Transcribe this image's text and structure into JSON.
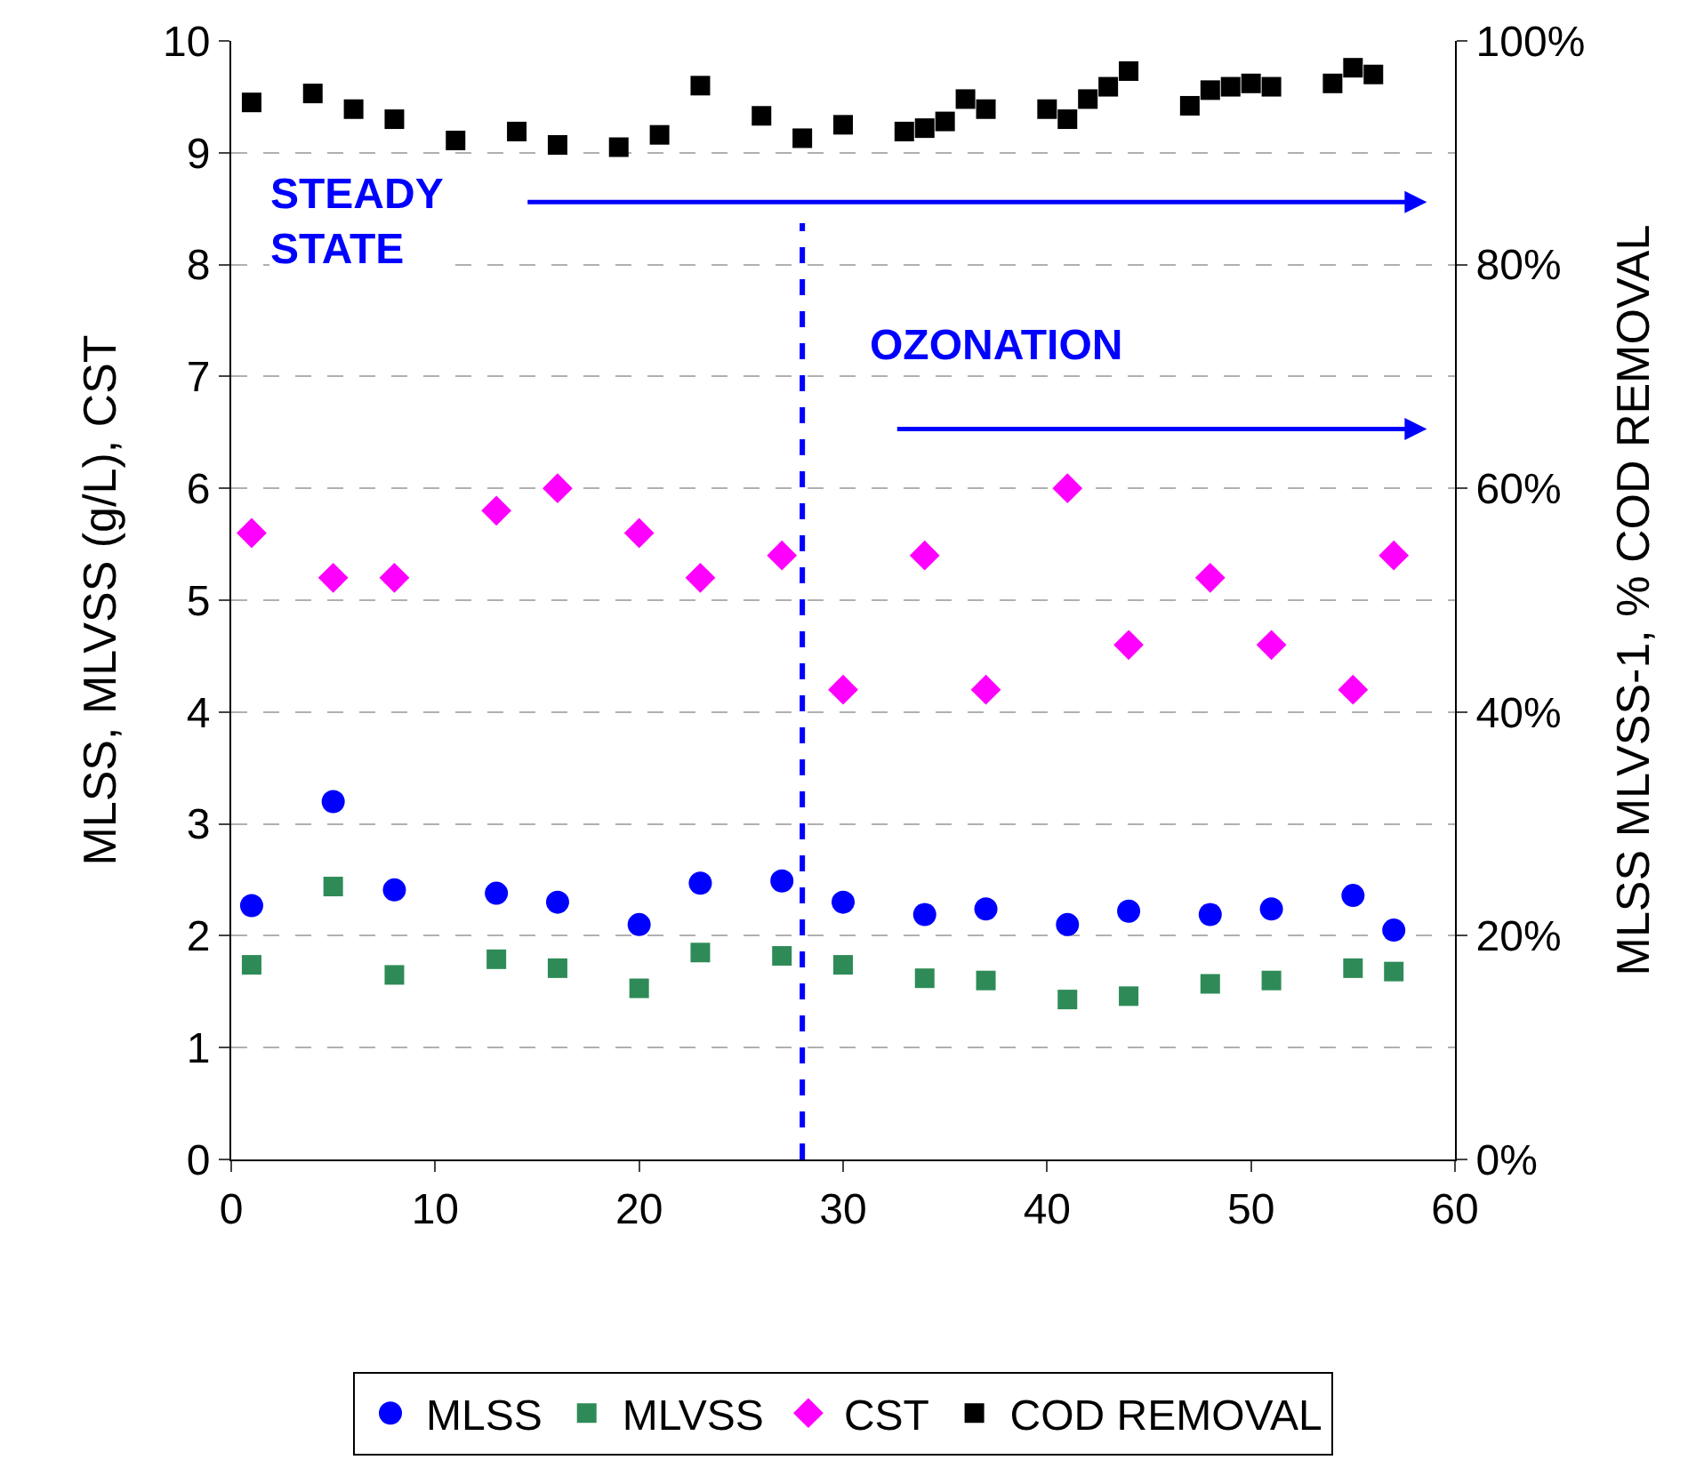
{
  "chart_data": {
    "type": "scatter",
    "xlabel": null,
    "ylabel": "MLSS, MLVSS (g/L), CST",
    "y2label": "MLSS MLVSS-1, % COD REMOVAL",
    "xlim": [
      0,
      60
    ],
    "xticks": [
      0,
      10,
      20,
      30,
      40,
      50,
      60
    ],
    "ylim": [
      0,
      10
    ],
    "yticks": [
      0,
      1,
      2,
      3,
      4,
      5,
      6,
      7,
      8,
      9,
      10
    ],
    "y2lim": [
      0,
      100
    ],
    "y2ticks": [
      {
        "value": 0,
        "label": "0%"
      },
      {
        "value": 20,
        "label": "20%"
      },
      {
        "value": 40,
        "label": "40%"
      },
      {
        "value": 60,
        "label": "60%"
      },
      {
        "value": 80,
        "label": "80%"
      },
      {
        "value": 100,
        "label": "100%"
      }
    ],
    "grid": "y",
    "legend": "bottom",
    "series": [
      {
        "name": "MLSS",
        "color": "#0000ff",
        "marker": "circle",
        "x": [
          1,
          5,
          8,
          13,
          16,
          20,
          23,
          27,
          30,
          34,
          37,
          41,
          44,
          48,
          51,
          55,
          57
        ],
        "values": [
          2.27,
          3.2,
          2.41,
          2.38,
          2.3,
          2.1,
          2.47,
          2.49,
          2.3,
          2.19,
          2.24,
          2.1,
          2.22,
          2.19,
          2.24,
          2.36,
          2.05
        ]
      },
      {
        "name": "MLVSS",
        "color": "#2e8b57",
        "marker": "square",
        "x": [
          1,
          5,
          8,
          13,
          16,
          20,
          23,
          27,
          30,
          34,
          37,
          41,
          44,
          48,
          51,
          55,
          57
        ],
        "values": [
          1.74,
          2.44,
          1.65,
          1.79,
          1.71,
          1.53,
          1.85,
          1.82,
          1.74,
          1.62,
          1.6,
          1.43,
          1.46,
          1.57,
          1.6,
          1.71,
          1.68
        ]
      },
      {
        "name": "CST",
        "color": "#ff00ff",
        "marker": "diamond",
        "x": [
          1,
          5,
          8,
          13,
          16,
          20,
          23,
          27,
          30,
          34,
          37,
          41,
          44,
          48,
          51,
          55,
          57
        ],
        "values": [
          5.6,
          5.2,
          5.2,
          5.8,
          6.0,
          5.6,
          5.2,
          5.4,
          4.2,
          5.4,
          4.2,
          6.0,
          4.6,
          5.2,
          4.6,
          4.2,
          5.4
        ]
      },
      {
        "name": "COD REMOVAL",
        "color": "#000000",
        "marker": "square",
        "axis": "y2",
        "x": [
          1,
          4,
          6,
          8,
          11,
          14,
          16,
          19,
          21,
          23,
          26,
          28,
          30,
          33,
          34,
          35,
          36,
          37,
          40,
          41,
          42,
          43,
          44,
          47,
          48,
          49,
          50,
          51,
          54,
          55,
          56
        ],
        "values": [
          94.5,
          95.3,
          93.9,
          93,
          91.1,
          91.9,
          90.7,
          90.5,
          91.6,
          96,
          93.3,
          91.3,
          92.5,
          91.9,
          92.2,
          92.8,
          94.8,
          93.9,
          93.9,
          93,
          94.8,
          95.9,
          97.3,
          94.2,
          95.6,
          95.9,
          96.2,
          95.9,
          96.2,
          97.6,
          97
        ]
      }
    ],
    "ref_lines": [
      {
        "axis": "x",
        "value": 28,
        "label": null,
        "color": "#0000ff",
        "line_style": "dashed"
      }
    ],
    "annotations": [
      "STEADY STATE",
      "OZONATION"
    ]
  }
}
